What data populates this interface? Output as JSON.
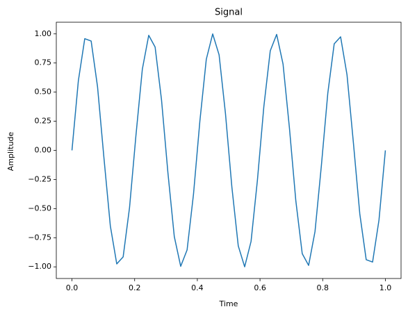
{
  "chart_data": {
    "type": "line",
    "title": "Signal",
    "x_label": "Time",
    "y_label": "Amplitude",
    "x": [
      0,
      0.0204,
      0.0408,
      0.0612,
      0.0816,
      0.102,
      0.1224,
      0.1429,
      0.1633,
      0.1837,
      0.2041,
      0.2245,
      0.2449,
      0.2653,
      0.2857,
      0.3061,
      0.3265,
      0.3469,
      0.3673,
      0.3878,
      0.4082,
      0.4286,
      0.449,
      0.4694,
      0.4898,
      0.5102,
      0.5306,
      0.551,
      0.5714,
      0.5918,
      0.6122,
      0.6327,
      0.6531,
      0.6735,
      0.6939,
      0.7143,
      0.7347,
      0.7551,
      0.7755,
      0.7959,
      0.8163,
      0.8367,
      0.8571,
      0.8776,
      0.898,
      0.9184,
      0.9388,
      0.9592,
      0.9796,
      1
    ],
    "series": [
      {
        "color": "#1f77b4",
        "values": [
          0,
          0.5981,
          0.9587,
          0.9385,
          0.5455,
          -0.0641,
          -0.6482,
          -0.9749,
          -0.9144,
          -0.4907,
          0.1279,
          0.6959,
          0.9872,
          0.8866,
          0.4339,
          -0.1912,
          -0.7403,
          -0.9954,
          -0.855,
          -0.3752,
          0.2537,
          0.7818,
          0.9995,
          0.8202,
          0.3151,
          -0.3151,
          -0.8202,
          -0.9995,
          -0.7818,
          -0.2537,
          0.3752,
          0.855,
          0.9954,
          0.7403,
          0.1912,
          -0.4339,
          -0.8866,
          -0.9872,
          -0.6959,
          -0.1279,
          0.4907,
          0.9144,
          0.9749,
          0.6482,
          0.0641,
          -0.5455,
          -0.9385,
          -0.9587,
          -0.5981,
          0
        ]
      }
    ],
    "xlim": [
      -0.05,
      1.05
    ],
    "ylim": [
      -1.1,
      1.1
    ],
    "xticks": [
      {
        "value": 0,
        "label": "0.0"
      },
      {
        "value": 0.2,
        "label": "0.2"
      },
      {
        "value": 0.4,
        "label": "0.4"
      },
      {
        "value": 0.6,
        "label": "0.6"
      },
      {
        "value": 0.8,
        "label": "0.8"
      },
      {
        "value": 1,
        "label": "1.0"
      }
    ],
    "yticks": [
      {
        "value": -1,
        "label": "−1.00"
      },
      {
        "value": -0.75,
        "label": "−0.75"
      },
      {
        "value": -0.5,
        "label": "−0.50"
      },
      {
        "value": -0.25,
        "label": "−0.25"
      },
      {
        "value": 0,
        "label": "0.00"
      },
      {
        "value": 0.25,
        "label": "0.25"
      },
      {
        "value": 0.5,
        "label": "0.50"
      },
      {
        "value": 0.75,
        "label": "0.75"
      },
      {
        "value": 1,
        "label": "1.00"
      }
    ]
  }
}
